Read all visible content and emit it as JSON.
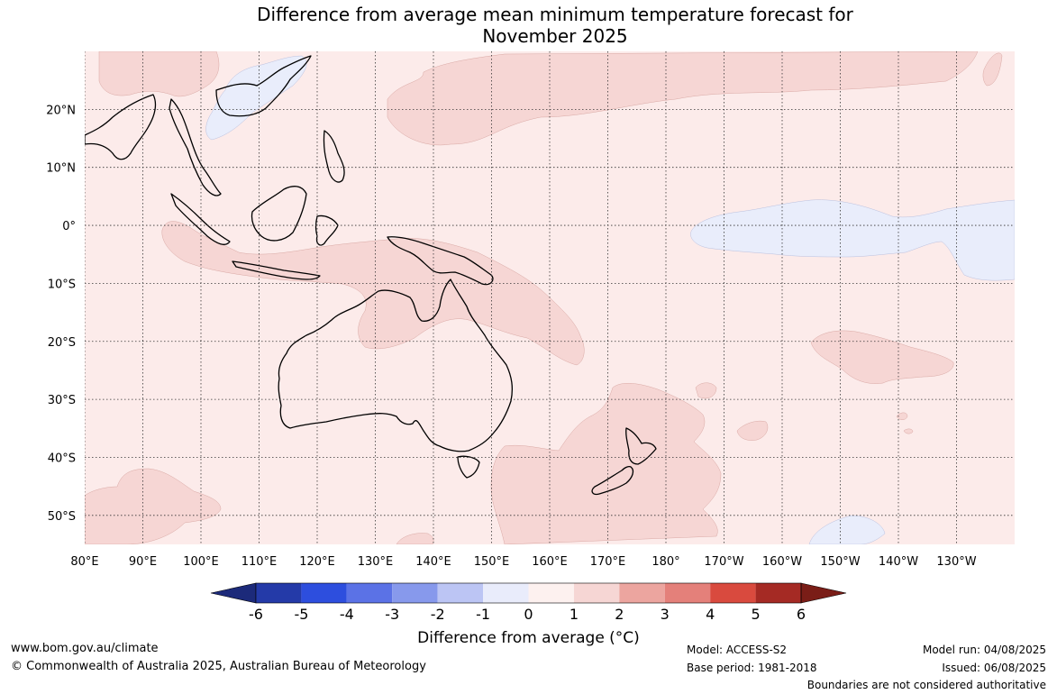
{
  "title": {
    "line1": "Difference from average mean minimum temperature forecast for",
    "line2": "November 2025"
  },
  "map": {
    "lon_labels": [
      "80°E",
      "90°E",
      "100°E",
      "110°E",
      "120°E",
      "130°E",
      "140°E",
      "150°E",
      "160°E",
      "170°E",
      "180°",
      "170°W",
      "160°W",
      "150°W",
      "140°W",
      "130°W"
    ],
    "lat_labels": [
      "20°N",
      "10°N",
      "0°",
      "10°S",
      "20°S",
      "30°S",
      "40°S",
      "50°S"
    ],
    "lon_range": [
      80,
      240
    ],
    "lat_range": [
      -55,
      30
    ],
    "grid_style": "dotted",
    "colors": {
      "ocean_base": "#fcebea",
      "warm_0_1": "#fdf3f1",
      "warm_1_2": "#f6d6d4",
      "cool_0_1": "#e9edfb",
      "coast": "#000000",
      "border": "#8a8a8a"
    }
  },
  "legend": {
    "ticks": [
      "-6",
      "-5",
      "-4",
      "-3",
      "-2",
      "-1",
      "0",
      "1",
      "2",
      "3",
      "4",
      "5",
      "6"
    ],
    "colors": [
      "#243aa8",
      "#2d4ede",
      "#5b72e6",
      "#8799ec",
      "#bcc5f4",
      "#e9ecfb",
      "#fdf1ef",
      "#f6d6d4",
      "#eca59f",
      "#e4807a",
      "#d94a3e",
      "#a52a24"
    ],
    "under_color": "#1c2a7a",
    "over_color": "#7a1d17",
    "title": "Difference from average (°C)"
  },
  "footer": {
    "url": "www.bom.gov.au/climate",
    "copyright": "© Commonwealth of Australia 2025, Australian Bureau of Meteorology",
    "model": "Model: ACCESS-S2",
    "base_period": "Base period: 1981-2018",
    "model_run": "Model run: 04/08/2025",
    "issued": "Issued: 06/08/2025",
    "disclaimer": "Boundaries are not considered authoritative"
  }
}
